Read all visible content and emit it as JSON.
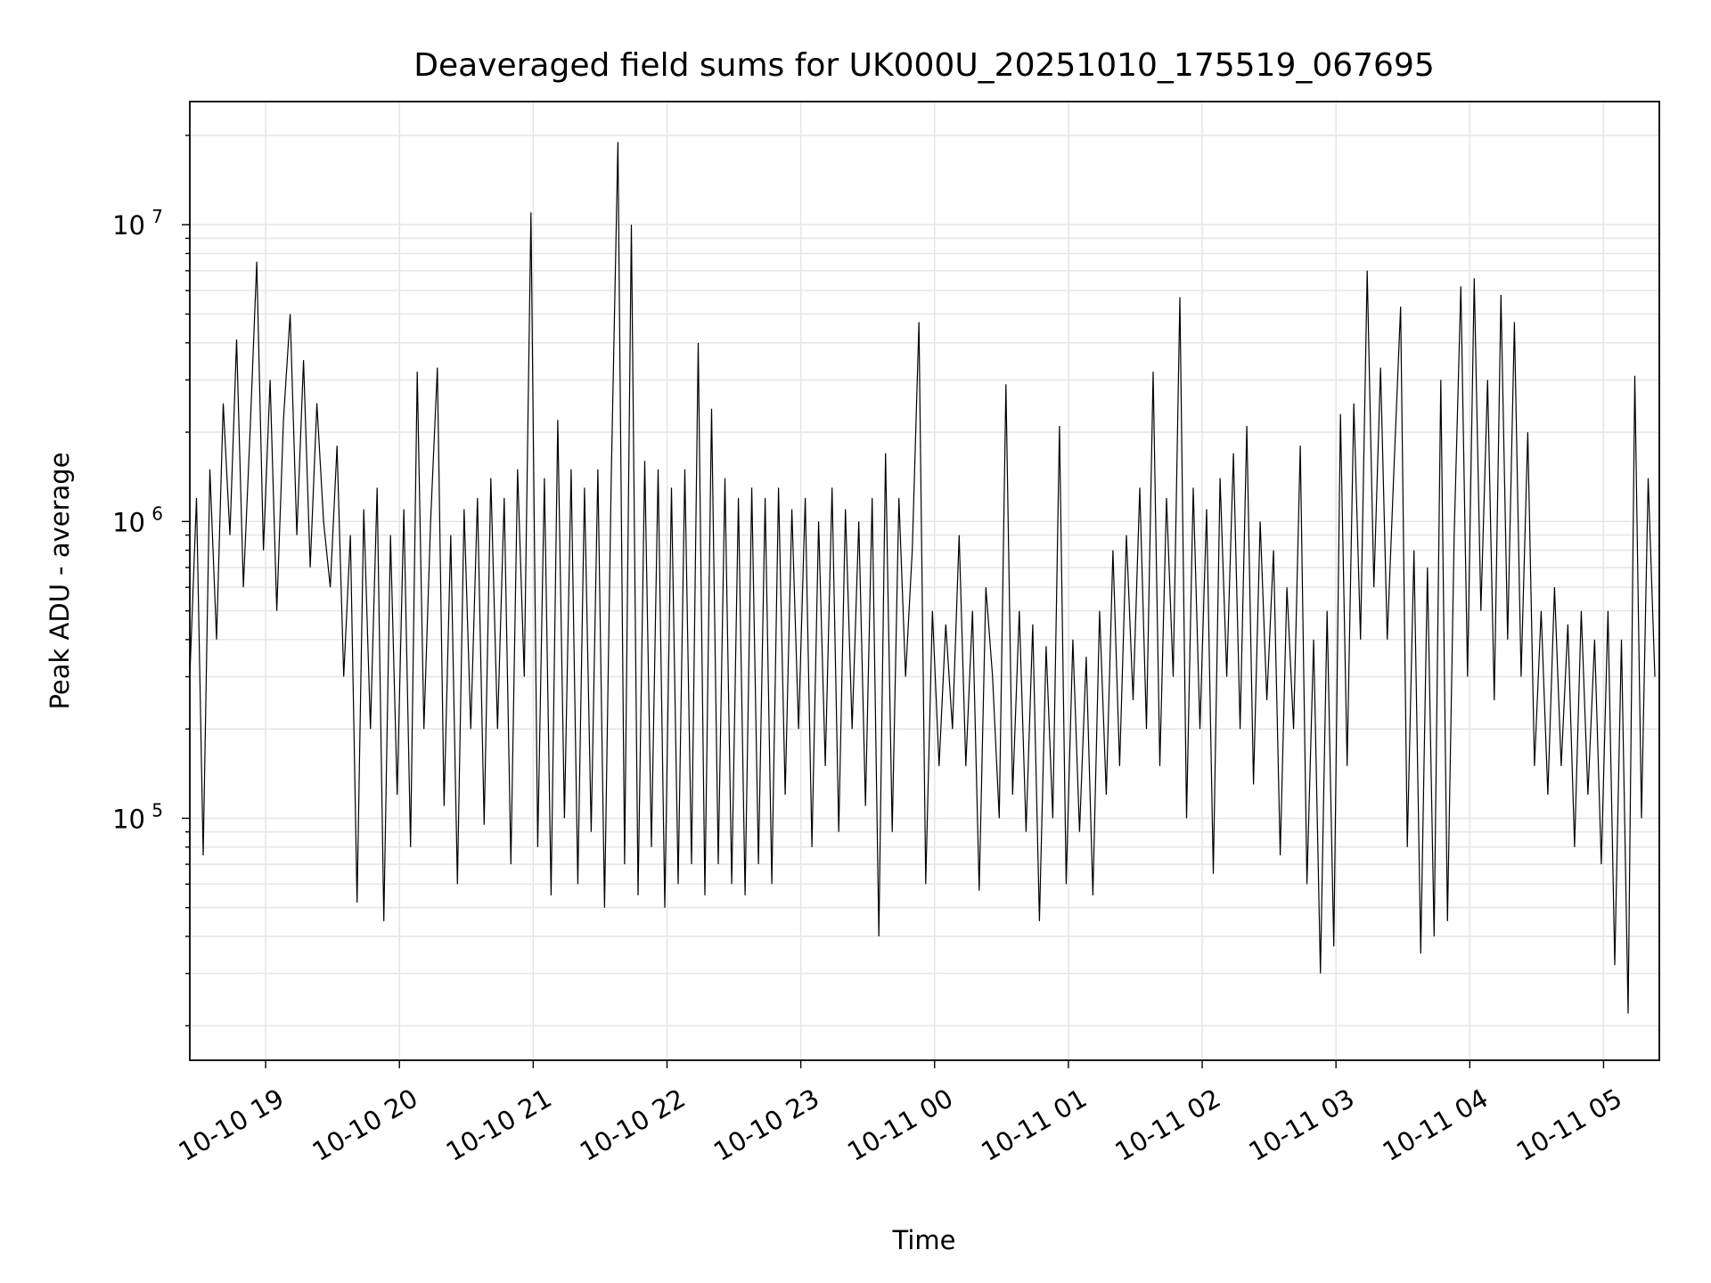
{
  "chart_data": {
    "type": "line",
    "title": "Deaveraged field sums for UK000U_20251010_175519_067695",
    "xlabel": "Time",
    "ylabel": "Peak ADU - average",
    "yscale": "log",
    "ylim": [
      15300,
      26000000
    ],
    "xlim_minutes_from_2025_10_10_0000": [
      1106,
      1765
    ],
    "grid": true,
    "series_color": "#000000",
    "grid_color": "#e6e6e6",
    "x_ticks": [
      {
        "minutes": 1140,
        "label": "10-10 19"
      },
      {
        "minutes": 1200,
        "label": "10-10 20"
      },
      {
        "minutes": 1260,
        "label": "10-10 21"
      },
      {
        "minutes": 1320,
        "label": "10-10 22"
      },
      {
        "minutes": 1380,
        "label": "10-10 23"
      },
      {
        "minutes": 1440,
        "label": "10-11 00"
      },
      {
        "minutes": 1500,
        "label": "10-11 01"
      },
      {
        "minutes": 1560,
        "label": "10-11 02"
      },
      {
        "minutes": 1620,
        "label": "10-11 03"
      },
      {
        "minutes": 1680,
        "label": "10-11 04"
      },
      {
        "minutes": 1740,
        "label": "10-11 05"
      }
    ],
    "y_ticks": [
      {
        "value": 100000,
        "base": "10",
        "exp": "5"
      },
      {
        "value": 1000000,
        "base": "10",
        "exp": "6"
      },
      {
        "value": 10000000,
        "base": "10",
        "exp": "7"
      }
    ],
    "series": [
      {
        "name": "Peak ADU - average",
        "start_minutes": 1106,
        "interval_minutes": 3,
        "values": [
          300000.0,
          1200000.0,
          75000.0,
          1500000.0,
          400000.0,
          2500000.0,
          900000.0,
          4100000.0,
          600000.0,
          2000000.0,
          7500000.0,
          800000.0,
          3000000.0,
          500000.0,
          2200000.0,
          5000000.0,
          900000.0,
          3500000.0,
          700000.0,
          2500000.0,
          1000000.0,
          600000.0,
          1800000.0,
          300000.0,
          900000.0,
          52000.0,
          1100000.0,
          200000.0,
          1300000.0,
          45000.0,
          900000.0,
          120000.0,
          1100000.0,
          80000.0,
          3200000.0,
          200000.0,
          1000000.0,
          3300000.0,
          110000.0,
          900000.0,
          60000.0,
          1100000.0,
          200000.0,
          1200000.0,
          95000.0,
          1400000.0,
          200000.0,
          1200000.0,
          70000.0,
          1500000.0,
          300000.0,
          11000000.0,
          80000.0,
          1400000.0,
          55000.0,
          2200000.0,
          100000.0,
          1500000.0,
          60000.0,
          1300000.0,
          90000.0,
          1500000.0,
          50000.0,
          1400000.0,
          19000000.0,
          70000.0,
          10000000.0,
          55000.0,
          1600000.0,
          80000.0,
          1500000.0,
          50000.0,
          1300000.0,
          60000.0,
          1500000.0,
          70000.0,
          4000000.0,
          55000.0,
          2400000.0,
          70000.0,
          1400000.0,
          60000.0,
          1200000.0,
          55000.0,
          1300000.0,
          70000.0,
          1200000.0,
          60000.0,
          1300000.0,
          120000.0,
          1100000.0,
          200000.0,
          1200000.0,
          80000.0,
          1000000.0,
          150000.0,
          1300000.0,
          90000.0,
          1100000.0,
          200000.0,
          1000000.0,
          110000.0,
          1200000.0,
          40000.0,
          1700000.0,
          90000.0,
          1200000.0,
          300000.0,
          800000.0,
          4700000.0,
          60000.0,
          500000.0,
          150000.0,
          450000.0,
          200000.0,
          900000.0,
          150000.0,
          500000.0,
          57000.0,
          600000.0,
          300000.0,
          100000.0,
          2900000.0,
          120000.0,
          500000.0,
          90000.0,
          450000.0,
          45000.0,
          380000.0,
          100000.0,
          2100000.0,
          60000.0,
          400000.0,
          90000.0,
          350000.0,
          55000.0,
          500000.0,
          120000.0,
          800000.0,
          150000.0,
          900000.0,
          250000.0,
          1300000.0,
          200000.0,
          3200000.0,
          150000.0,
          1200000.0,
          300000.0,
          5700000.0,
          100000.0,
          1300000.0,
          200000.0,
          1100000.0,
          65000.0,
          1400000.0,
          300000.0,
          1700000.0,
          200000.0,
          2100000.0,
          130000.0,
          1000000.0,
          250000.0,
          800000.0,
          75000.0,
          600000.0,
          200000.0,
          1800000.0,
          60000.0,
          400000.0,
          30000.0,
          500000.0,
          37000.0,
          2300000.0,
          150000.0,
          2500000.0,
          400000.0,
          7000000.0,
          600000.0,
          3300000.0,
          400000.0,
          1500000.0,
          5300000.0,
          80000.0,
          800000.0,
          35000.0,
          700000.0,
          40000.0,
          3000000.0,
          45000.0,
          900000.0,
          6200000.0,
          300000.0,
          6600000.0,
          500000.0,
          3000000.0,
          250000.0,
          5800000.0,
          400000.0,
          4700000.0,
          300000.0,
          2000000.0,
          150000.0,
          500000.0,
          120000.0,
          600000.0,
          150000.0,
          450000.0,
          80000.0,
          500000.0,
          120000.0,
          400000.0,
          70000.0,
          500000.0,
          32000.0,
          400000.0,
          22000.0,
          3100000.0,
          100000.0,
          1400000.0,
          300000.0
        ]
      }
    ]
  }
}
